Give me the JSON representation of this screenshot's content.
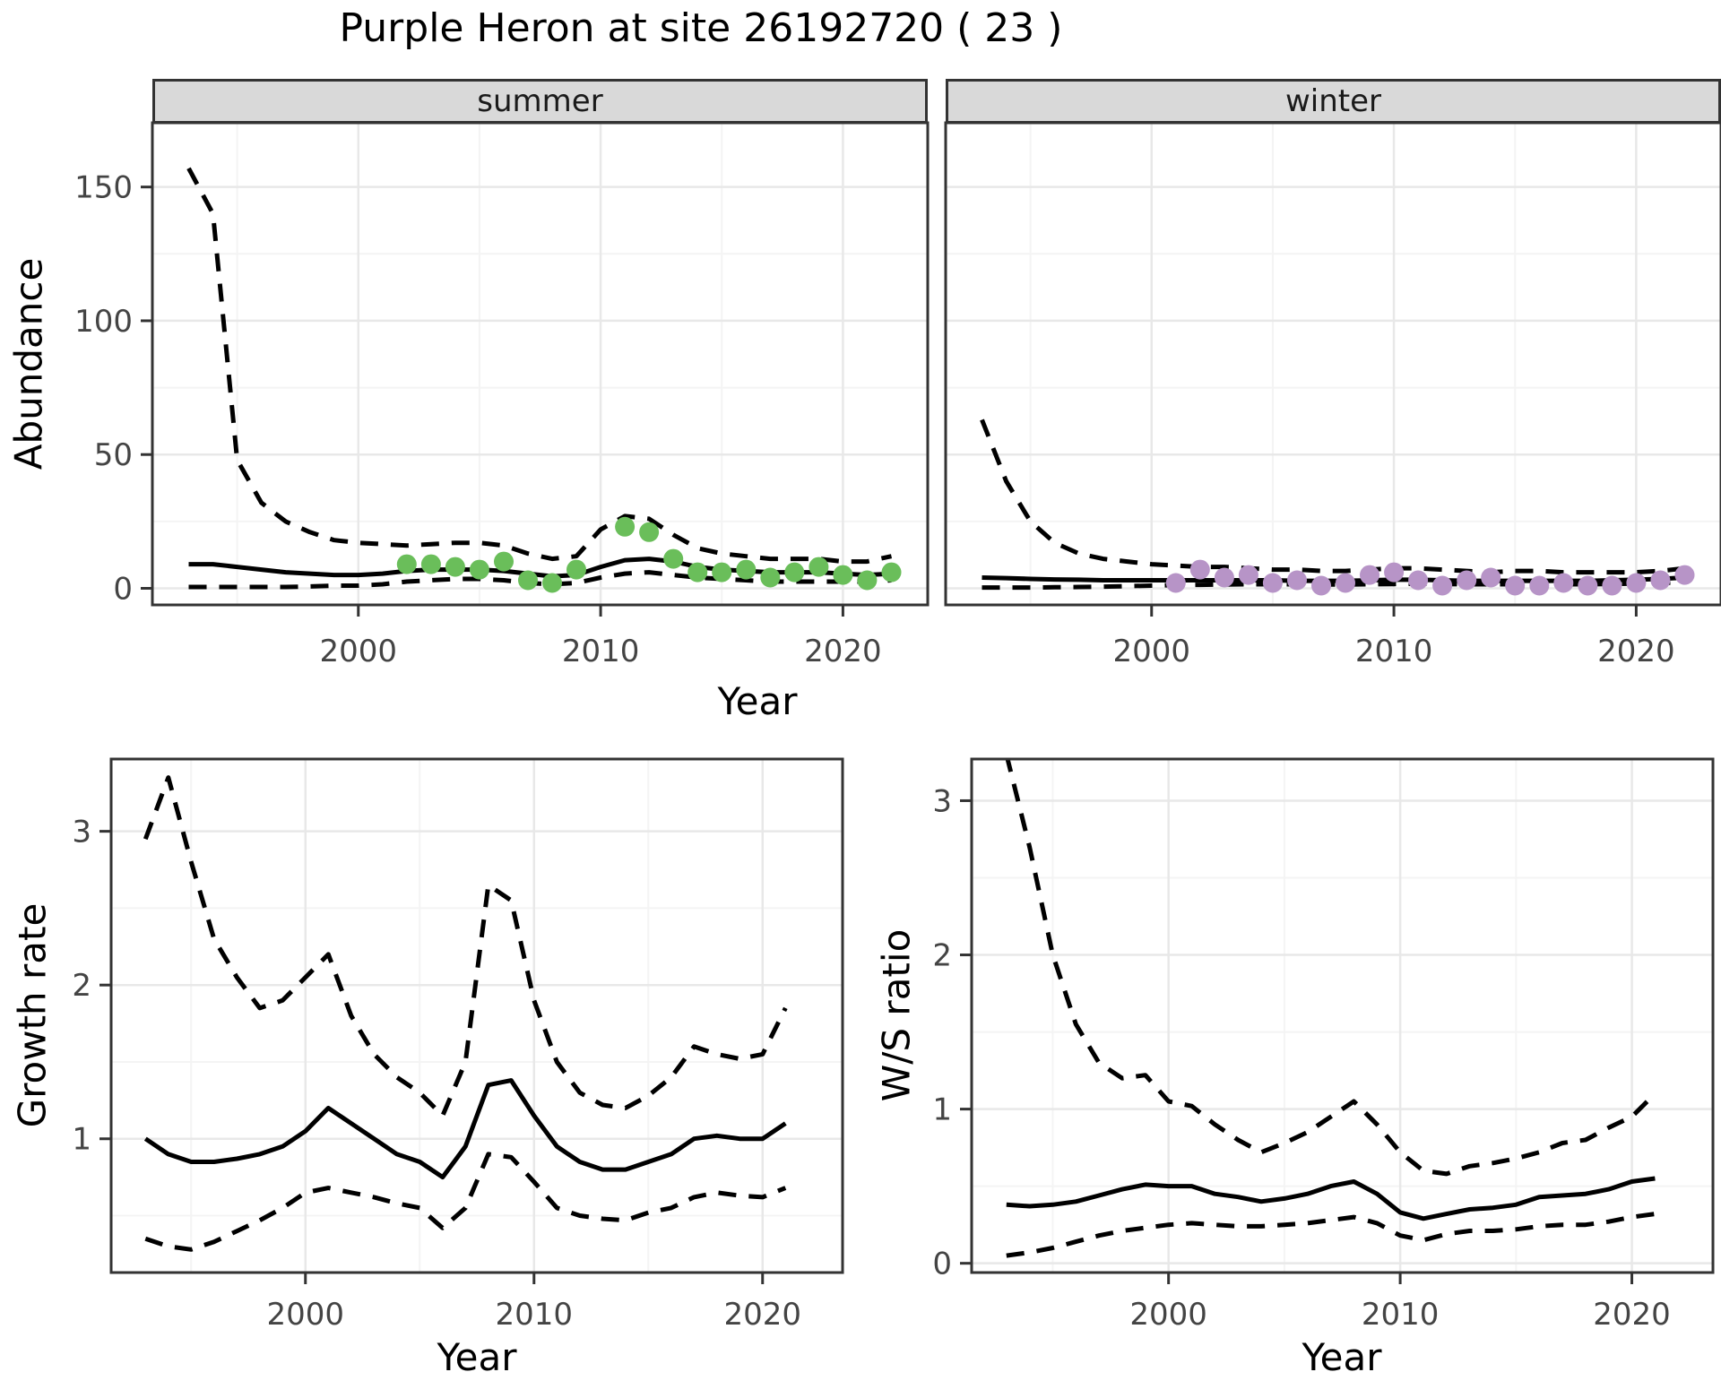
{
  "title": "Purple Heron at site 26192720 ( 23 )",
  "colors": {
    "summer_points": "#6ABE5A",
    "winter_points": "#B794C7",
    "line": "#000000",
    "strip_bg": "#D9D9D9",
    "panel_border": "#333333",
    "grid_major": "#E8E8E8",
    "grid_minor": "#F4F4F4",
    "tick_label": "#444444"
  },
  "top_row": {
    "y_axis_label": "Abundance",
    "x_axis_label": "Year",
    "facets": [
      {
        "label": "summer"
      },
      {
        "label": "winter"
      }
    ]
  },
  "bottom_row": {
    "left": {
      "y_axis_label": "Growth rate",
      "x_axis_label": "Year"
    },
    "right": {
      "y_axis_label": "W/S ratio",
      "x_axis_label": "Year"
    }
  },
  "chart_data": [
    {
      "id": "abundance_summer",
      "type": "line",
      "title": "summer",
      "xlabel": "Year",
      "ylabel": "Abundance",
      "xlim": [
        1991.5,
        2023.5
      ],
      "ylim": [
        -6.2,
        174
      ],
      "x_ticks": [
        2000,
        2010,
        2020
      ],
      "y_ticks": [
        0,
        50,
        100,
        150
      ],
      "grid": true,
      "series": [
        {
          "name": "observed counts",
          "style": "points",
          "color": "#6ABE5A",
          "years": [
            2002,
            2003,
            2004,
            2005,
            2006,
            2007,
            2008,
            2009,
            2011,
            2012,
            2013,
            2014,
            2015,
            2016,
            2017,
            2018,
            2019,
            2020,
            2021,
            2022
          ],
          "values": [
            9,
            9,
            8,
            7,
            10,
            3,
            2,
            7,
            23,
            21,
            11,
            6,
            6,
            7,
            4,
            6,
            8,
            5,
            3,
            6
          ]
        },
        {
          "name": "model fit",
          "style": "solid",
          "color": "#000000",
          "years": [
            1993,
            1994,
            1995,
            1996,
            1997,
            1998,
            1999,
            2000,
            2001,
            2002,
            2003,
            2004,
            2005,
            2006,
            2007,
            2008,
            2009,
            2010,
            2011,
            2012,
            2013,
            2014,
            2015,
            2016,
            2017,
            2018,
            2019,
            2020,
            2021,
            2022
          ],
          "values": [
            9,
            9,
            8,
            7,
            6,
            5.5,
            5,
            5,
            5.5,
            6.5,
            7,
            7,
            7,
            6.5,
            5.5,
            4.5,
            5,
            8,
            10.5,
            11,
            10,
            8,
            7,
            6.5,
            6,
            6,
            6,
            5.5,
            5,
            5.5
          ]
        },
        {
          "name": "upper CI",
          "style": "dashed",
          "color": "#000000",
          "years": [
            1993,
            1994,
            1995,
            1996,
            1997,
            1998,
            1999,
            2000,
            2001,
            2002,
            2003,
            2004,
            2005,
            2006,
            2007,
            2008,
            2009,
            2010,
            2011,
            2012,
            2013,
            2014,
            2015,
            2016,
            2017,
            2018,
            2019,
            2020,
            2021,
            2022
          ],
          "values": [
            157,
            140,
            48,
            32,
            25,
            21,
            18,
            17,
            16.5,
            16,
            16.5,
            17,
            17,
            16,
            13,
            11,
            12,
            22,
            27,
            26,
            20,
            15,
            13,
            12,
            11,
            11,
            11,
            10,
            10,
            12
          ]
        },
        {
          "name": "lower CI",
          "style": "dashed",
          "color": "#000000",
          "years": [
            1993,
            1994,
            1995,
            1996,
            1997,
            1998,
            1999,
            2000,
            2001,
            2002,
            2003,
            2004,
            2005,
            2006,
            2007,
            2008,
            2009,
            2010,
            2011,
            2012,
            2013,
            2014,
            2015,
            2016,
            2017,
            2018,
            2019,
            2020,
            2021,
            2022
          ],
          "values": [
            0.5,
            0.5,
            0.5,
            0.5,
            0.5,
            0.7,
            1,
            1,
            1.5,
            2.5,
            3,
            3.5,
            3.5,
            3,
            2,
            1.5,
            2,
            4,
            5.5,
            6,
            5,
            4,
            3.5,
            3,
            2.5,
            2.5,
            2.5,
            2.5,
            2.5,
            3
          ]
        }
      ]
    },
    {
      "id": "abundance_winter",
      "type": "line",
      "title": "winter",
      "xlabel": "Year",
      "ylabel": "Abundance",
      "xlim": [
        1991.5,
        2023.5
      ],
      "ylim": [
        -6.2,
        174
      ],
      "x_ticks": [
        2000,
        2010,
        2020
      ],
      "y_ticks": [
        0,
        50,
        100,
        150
      ],
      "grid": true,
      "series": [
        {
          "name": "observed counts",
          "style": "points",
          "color": "#B794C7",
          "years": [
            2001,
            2002,
            2003,
            2004,
            2005,
            2006,
            2007,
            2008,
            2009,
            2010,
            2011,
            2012,
            2013,
            2014,
            2015,
            2016,
            2017,
            2018,
            2019,
            2020,
            2021,
            2022
          ],
          "values": [
            2,
            7,
            4,
            5,
            2,
            3,
            1,
            2,
            5,
            6,
            3,
            1,
            3,
            4,
            1,
            1,
            2,
            1,
            1,
            2,
            3,
            5
          ]
        },
        {
          "name": "model fit",
          "style": "solid",
          "color": "#000000",
          "years": [
            1993,
            1994,
            1995,
            1996,
            1997,
            1998,
            1999,
            2000,
            2001,
            2002,
            2003,
            2004,
            2005,
            2006,
            2007,
            2008,
            2009,
            2010,
            2011,
            2012,
            2013,
            2014,
            2015,
            2016,
            2017,
            2018,
            2019,
            2020,
            2021,
            2022
          ],
          "values": [
            4,
            3.8,
            3.5,
            3.3,
            3.2,
            3,
            3,
            3,
            3,
            3,
            3,
            3,
            3,
            2.8,
            2.8,
            2.8,
            3,
            3.2,
            3.2,
            3,
            2.8,
            2.8,
            2.8,
            2.8,
            2.8,
            2.8,
            3,
            3.2,
            3.5,
            4
          ]
        },
        {
          "name": "upper CI",
          "style": "dashed",
          "color": "#000000",
          "years": [
            1993,
            1994,
            1995,
            1996,
            1997,
            1998,
            1999,
            2000,
            2001,
            2002,
            2003,
            2004,
            2005,
            2006,
            2007,
            2008,
            2009,
            2010,
            2011,
            2012,
            2013,
            2014,
            2015,
            2016,
            2017,
            2018,
            2019,
            2020,
            2021,
            2022
          ],
          "values": [
            63,
            40,
            25,
            17,
            13,
            11,
            10,
            9,
            8.5,
            8,
            8,
            7.5,
            7,
            7,
            6.5,
            6.5,
            7,
            7.5,
            7.5,
            7,
            6.5,
            6,
            6.5,
            6.5,
            6,
            6,
            6,
            6,
            6.5,
            7.5
          ]
        },
        {
          "name": "lower CI",
          "style": "dashed",
          "color": "#000000",
          "years": [
            1993,
            1994,
            1995,
            1996,
            1997,
            1998,
            1999,
            2000,
            2001,
            2002,
            2003,
            2004,
            2005,
            2006,
            2007,
            2008,
            2009,
            2010,
            2011,
            2012,
            2013,
            2014,
            2015,
            2016,
            2017,
            2018,
            2019,
            2020,
            2021,
            2022
          ],
          "values": [
            0.3,
            0.3,
            0.3,
            0.4,
            0.5,
            0.6,
            0.8,
            1,
            1.2,
            1.3,
            1.4,
            1.5,
            1.5,
            1.5,
            1.4,
            1.4,
            1.5,
            1.6,
            1.7,
            1.6,
            1.5,
            1.5,
            1.5,
            1.5,
            1.5,
            1.5,
            1.6,
            1.8,
            2,
            2.2
          ]
        }
      ]
    },
    {
      "id": "growth_rate",
      "type": "line",
      "title": "",
      "xlabel": "Year",
      "ylabel": "Growth rate",
      "xlim": [
        1991.5,
        2023.5
      ],
      "ylim": [
        0.13,
        3.47
      ],
      "x_ticks": [
        2000,
        2010,
        2020
      ],
      "y_ticks": [
        1,
        2,
        3
      ],
      "grid": true,
      "series": [
        {
          "name": "growth rate",
          "style": "solid",
          "color": "#000000",
          "years": [
            1993,
            1994,
            1995,
            1996,
            1997,
            1998,
            1999,
            2000,
            2001,
            2002,
            2003,
            2004,
            2005,
            2006,
            2007,
            2008,
            2009,
            2010,
            2011,
            2012,
            2013,
            2014,
            2015,
            2016,
            2017,
            2018,
            2019,
            2020,
            2021
          ],
          "values": [
            1.0,
            0.9,
            0.85,
            0.85,
            0.87,
            0.9,
            0.95,
            1.05,
            1.2,
            1.1,
            1.0,
            0.9,
            0.85,
            0.75,
            0.95,
            1.35,
            1.38,
            1.15,
            0.95,
            0.85,
            0.8,
            0.8,
            0.85,
            0.9,
            1.0,
            1.02,
            1.0,
            1.0,
            1.1
          ]
        },
        {
          "name": "upper CI",
          "style": "dashed",
          "color": "#000000",
          "years": [
            1993,
            1994,
            1995,
            1996,
            1997,
            1998,
            1999,
            2000,
            2001,
            2002,
            2003,
            2004,
            2005,
            2006,
            2007,
            2008,
            2009,
            2010,
            2011,
            2012,
            2013,
            2014,
            2015,
            2016,
            2017,
            2018,
            2019,
            2020,
            2021
          ],
          "values": [
            2.95,
            3.35,
            2.8,
            2.3,
            2.05,
            1.85,
            1.9,
            2.05,
            2.2,
            1.8,
            1.55,
            1.4,
            1.3,
            1.15,
            1.5,
            2.65,
            2.55,
            1.9,
            1.5,
            1.3,
            1.22,
            1.2,
            1.28,
            1.4,
            1.6,
            1.55,
            1.52,
            1.55,
            1.85
          ]
        },
        {
          "name": "lower CI",
          "style": "dashed",
          "color": "#000000",
          "years": [
            1993,
            1994,
            1995,
            1996,
            1997,
            1998,
            1999,
            2000,
            2001,
            2002,
            2003,
            2004,
            2005,
            2006,
            2007,
            2008,
            2009,
            2010,
            2011,
            2012,
            2013,
            2014,
            2015,
            2016,
            2017,
            2018,
            2019,
            2020,
            2021
          ],
          "values": [
            0.35,
            0.3,
            0.28,
            0.33,
            0.4,
            0.47,
            0.55,
            0.65,
            0.68,
            0.65,
            0.62,
            0.58,
            0.55,
            0.42,
            0.55,
            0.9,
            0.88,
            0.72,
            0.55,
            0.5,
            0.48,
            0.47,
            0.52,
            0.55,
            0.62,
            0.65,
            0.63,
            0.62,
            0.68
          ]
        }
      ]
    },
    {
      "id": "ws_ratio",
      "type": "line",
      "title": "",
      "xlabel": "Year",
      "ylabel": "W/S ratio",
      "xlim": [
        1991.5,
        2023.5
      ],
      "ylim": [
        -0.06,
        3.27
      ],
      "x_ticks": [
        2000,
        2010,
        2020
      ],
      "y_ticks": [
        0,
        1,
        2,
        3
      ],
      "grid": true,
      "series": [
        {
          "name": "W/S ratio",
          "style": "solid",
          "color": "#000000",
          "years": [
            1993,
            1994,
            1995,
            1996,
            1997,
            1998,
            1999,
            2000,
            2001,
            2002,
            2003,
            2004,
            2005,
            2006,
            2007,
            2008,
            2009,
            2010,
            2011,
            2012,
            2013,
            2014,
            2015,
            2016,
            2017,
            2018,
            2019,
            2020,
            2021
          ],
          "values": [
            0.38,
            0.37,
            0.38,
            0.4,
            0.44,
            0.48,
            0.51,
            0.5,
            0.5,
            0.45,
            0.43,
            0.4,
            0.42,
            0.45,
            0.5,
            0.53,
            0.45,
            0.33,
            0.29,
            0.32,
            0.35,
            0.36,
            0.38,
            0.43,
            0.44,
            0.45,
            0.48,
            0.53,
            0.55
          ]
        },
        {
          "name": "upper CI",
          "style": "dashed",
          "color": "#000000",
          "years": [
            1993,
            1994,
            1995,
            1996,
            1997,
            1998,
            1999,
            2000,
            2001,
            2002,
            2003,
            2004,
            2005,
            2006,
            2007,
            2008,
            2009,
            2010,
            2011,
            2012,
            2013,
            2014,
            2015,
            2016,
            2017,
            2018,
            2019,
            2020,
            2021
          ],
          "values": [
            3.3,
            2.7,
            2.0,
            1.55,
            1.3,
            1.2,
            1.22,
            1.05,
            1.02,
            0.9,
            0.8,
            0.72,
            0.78,
            0.85,
            0.95,
            1.05,
            0.9,
            0.72,
            0.6,
            0.58,
            0.63,
            0.65,
            0.68,
            0.72,
            0.78,
            0.8,
            0.88,
            0.95,
            1.1
          ]
        },
        {
          "name": "lower CI",
          "style": "dashed",
          "color": "#000000",
          "years": [
            1993,
            1994,
            1995,
            1996,
            1997,
            1998,
            1999,
            2000,
            2001,
            2002,
            2003,
            2004,
            2005,
            2006,
            2007,
            2008,
            2009,
            2010,
            2011,
            2012,
            2013,
            2014,
            2015,
            2016,
            2017,
            2018,
            2019,
            2020,
            2021
          ],
          "values": [
            0.05,
            0.07,
            0.1,
            0.14,
            0.18,
            0.21,
            0.23,
            0.25,
            0.26,
            0.25,
            0.24,
            0.24,
            0.25,
            0.26,
            0.28,
            0.3,
            0.26,
            0.18,
            0.15,
            0.19,
            0.21,
            0.21,
            0.22,
            0.24,
            0.25,
            0.25,
            0.27,
            0.3,
            0.32
          ]
        }
      ]
    }
  ]
}
